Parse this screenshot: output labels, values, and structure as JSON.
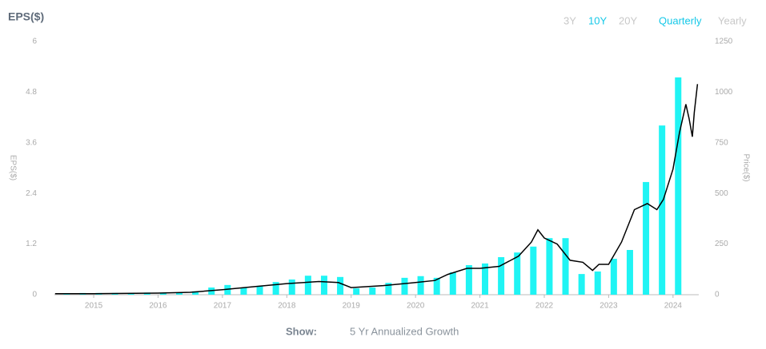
{
  "controls": {
    "range_options": [
      "3Y",
      "10Y",
      "20Y"
    ],
    "active_range": "10Y",
    "period_options": [
      "Quarterly",
      "Yearly"
    ],
    "active_period": "Quarterly"
  },
  "footer": {
    "show_label": "Show:",
    "show_option": "5 Yr Annualized Growth"
  },
  "chart_data": {
    "type": "bar",
    "title": "EPS($)",
    "ylabel": "EPS($)",
    "y2label": "Price($)",
    "xlim": [
      2014.39,
      2024.4
    ],
    "xticks": [
      2015,
      2016,
      2017,
      2018,
      2019,
      2020,
      2021,
      2022,
      2023,
      2024
    ],
    "ylim": [
      0,
      6
    ],
    "yticks": [
      0,
      1.2,
      2.4,
      3.6,
      4.8,
      6
    ],
    "y2lim": [
      0,
      1250
    ],
    "y2ticks": [
      0,
      250,
      500,
      750,
      1000,
      1250
    ],
    "series": [
      {
        "name": "EPS",
        "type": "bar",
        "color": "#1ff4f4",
        "x": [
          2014.58,
          2014.83,
          2015.08,
          2015.33,
          2015.58,
          2015.83,
          2016.08,
          2016.33,
          2016.58,
          2016.83,
          2017.08,
          2017.33,
          2017.58,
          2017.83,
          2018.08,
          2018.33,
          2018.58,
          2018.83,
          2019.08,
          2019.33,
          2019.58,
          2019.83,
          2020.08,
          2020.33,
          2020.58,
          2020.83,
          2021.08,
          2021.33,
          2021.58,
          2021.83,
          2022.08,
          2022.33,
          2022.58,
          2022.83,
          2023.08,
          2023.33,
          2023.58,
          2023.83,
          2024.08
        ],
        "values": [
          0.03,
          0.04,
          0.04,
          0.04,
          0.02,
          0.05,
          0.04,
          0.04,
          0.08,
          0.17,
          0.23,
          0.17,
          0.21,
          0.3,
          0.36,
          0.45,
          0.45,
          0.42,
          0.15,
          0.17,
          0.28,
          0.4,
          0.44,
          0.4,
          0.53,
          0.7,
          0.74,
          0.89,
          1.0,
          1.14,
          1.34,
          1.34,
          0.49,
          0.55,
          0.85,
          1.06,
          2.67,
          4.01,
          5.15
        ]
      },
      {
        "name": "Price",
        "type": "line",
        "axis": "y2",
        "color": "#000000",
        "x": [
          2014.4,
          2015,
          2016,
          2016.5,
          2017,
          2017.5,
          2018,
          2018.5,
          2018.8,
          2019.0,
          2019.5,
          2020,
          2020.3,
          2020.5,
          2020.8,
          2021,
          2021.3,
          2021.6,
          2021.8,
          2021.9,
          2022.0,
          2022.2,
          2022.4,
          2022.6,
          2022.75,
          2022.85,
          2023.0,
          2023.2,
          2023.4,
          2023.6,
          2023.75,
          2023.85,
          2024.0,
          2024.1,
          2024.2,
          2024.25,
          2024.3,
          2024.33,
          2024.38
        ],
        "values": [
          5,
          5,
          8,
          12,
          25,
          40,
          55,
          65,
          60,
          35,
          45,
          60,
          70,
          100,
          130,
          130,
          140,
          190,
          260,
          320,
          280,
          250,
          170,
          160,
          120,
          150,
          150,
          260,
          420,
          450,
          420,
          470,
          620,
          800,
          940,
          870,
          780,
          900,
          1040
        ]
      }
    ]
  }
}
